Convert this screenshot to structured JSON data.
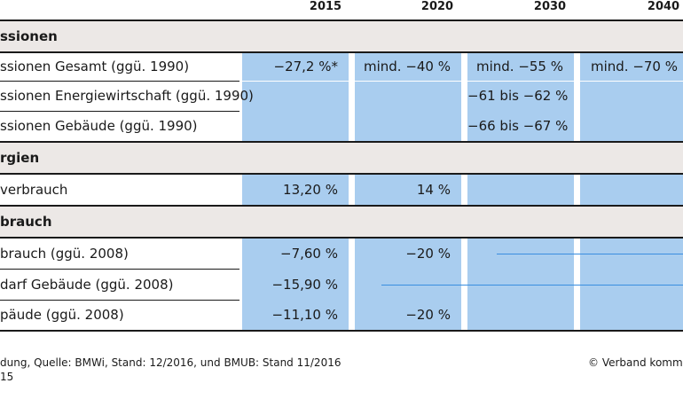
{
  "columns": [
    "2015",
    "2020",
    "2030",
    "2040"
  ],
  "sections": [
    {
      "title": "ssionen",
      "rows": [
        {
          "label": "ssionen Gesamt (ggü. 1990)",
          "values": [
            "−27,2 %*",
            "mind. −40 %",
            "mind. −55 %",
            "mind. −70 %"
          ]
        },
        {
          "label": "ssionen Energiewirtschaft (ggü. 1990)",
          "values": [
            "",
            "",
            "−61 bis −62 %",
            ""
          ]
        },
        {
          "label": "ssionen Gebäude (ggü. 1990)",
          "values": [
            "",
            "",
            "−66 bis −67 %",
            ""
          ]
        }
      ]
    },
    {
      "title": "rgien",
      "rows": [
        {
          "label": "verbrauch",
          "values": [
            "13,20 %",
            "14 %",
            "",
            ""
          ]
        }
      ]
    },
    {
      "title": "brauch",
      "rows": [
        {
          "label": "brauch (ggü. 2008)",
          "values": [
            "−7,60 %",
            "−20 %",
            "",
            ""
          ]
        },
        {
          "label": "darf Gebäude (ggü. 2008)",
          "values": [
            "−15,90 %",
            "",
            "",
            ""
          ]
        },
        {
          "label": "päude (ggü. 2008)",
          "values": [
            "−11,10 %",
            "−20 %",
            "",
            ""
          ]
        }
      ]
    }
  ],
  "footer": {
    "source": "dung, Quelle: BMWi, Stand: 12/2016, und BMUB: Stand 11/2016",
    "source2": "15",
    "copyright": "© Verband kommur"
  },
  "colors": {
    "cell": "#a9cdef",
    "band": "#ece8e6",
    "arrow": "#3a8ee0"
  }
}
